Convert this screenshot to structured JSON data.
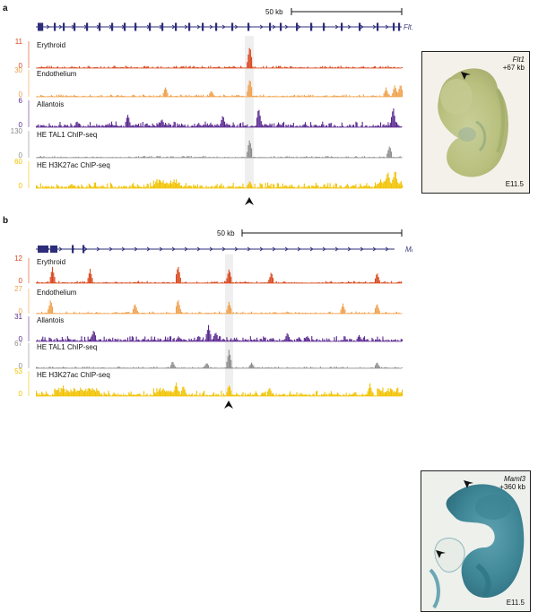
{
  "panels": [
    {
      "label": "a",
      "gene": "Flt1",
      "scale_label": "50 kb",
      "photo": {
        "gene": "Flt1",
        "offset": "+67 kb",
        "stage": "E11.5"
      },
      "tracks": [
        {
          "name": "Erythroid",
          "max": "11",
          "min": "0",
          "color": "#d9471c"
        },
        {
          "name": "Endothelium",
          "max": "30",
          "min": "0",
          "color": "#f0a04b"
        },
        {
          "name": "Allantois",
          "max": "6",
          "min": "0",
          "color": "#5b2a90"
        },
        {
          "name": "HE TAL1 ChIP-seq",
          "max": "130",
          "min": "0",
          "color": "#8c8c8c"
        },
        {
          "name": "HE H3K27ac ChIP-seq",
          "max": "60",
          "min": "0",
          "color": "#f2c200"
        }
      ]
    },
    {
      "label": "b",
      "gene": "Maml3",
      "scale_label": "50 kb",
      "photo": {
        "gene": "Maml3",
        "offset": "+360 kb",
        "stage": "E11.5"
      },
      "tracks": [
        {
          "name": "Erythroid",
          "max": "12",
          "min": "0",
          "color": "#d9471c"
        },
        {
          "name": "Endothelium",
          "max": "27",
          "min": "0",
          "color": "#f0a04b"
        },
        {
          "name": "Allantois",
          "max": "31",
          "min": "0",
          "color": "#5b2a90"
        },
        {
          "name": "HE TAL1 ChIP-seq",
          "max": "67",
          "min": "0",
          "color": "#8c8c8c"
        },
        {
          "name": "HE H3K27ac ChIP-seq",
          "max": "53",
          "min": "0",
          "color": "#f2c200"
        }
      ]
    }
  ]
}
